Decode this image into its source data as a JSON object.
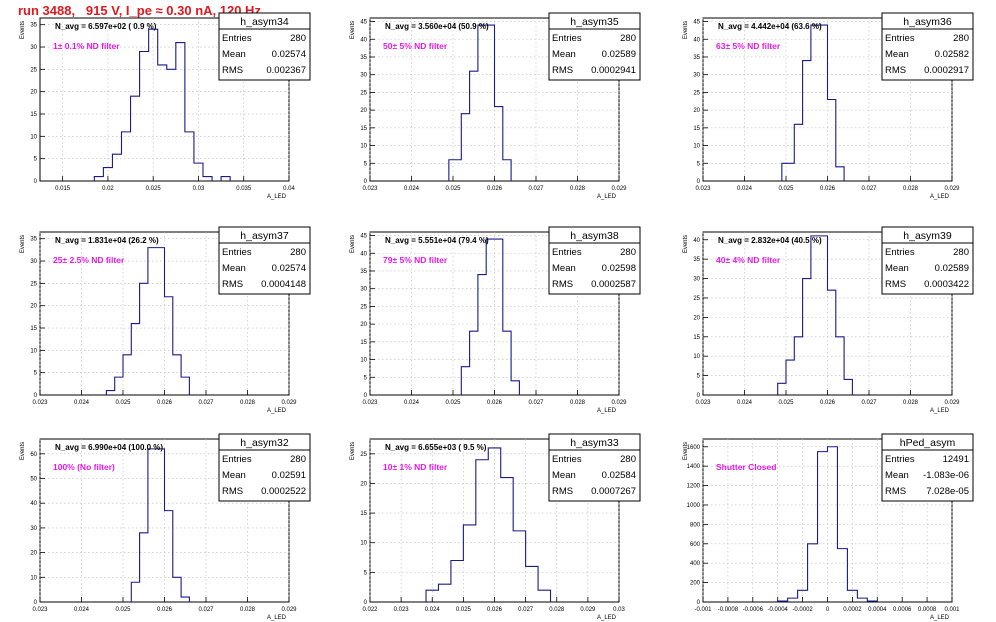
{
  "page_title": "run 3488,   915 V, I_pe ≈ 0.30 nA, 120 Hz",
  "colors": {
    "histogram": "#1a1a8a",
    "annotation": "#e619e6",
    "title": "#e0191e",
    "grid": "#bbbbbb"
  },
  "stat_labels": [
    "Entries",
    "Mean",
    "RMS"
  ],
  "chart_data": [
    {
      "type": "bar",
      "name": "h_asym34",
      "ylabel": "Events",
      "xlabel": "A_LED",
      "navg": "N_avg = 6.597e+02 ( 0.9 %)",
      "note": "1± 0.1% ND filter",
      "entries": "280",
      "mean": "0.02574",
      "rms": "0.002367",
      "xlim": [
        0.0125,
        0.04
      ],
      "ylim": [
        0,
        36.5
      ],
      "xticks": [
        0.015,
        0.02,
        0.025,
        0.03,
        0.035,
        0.04
      ],
      "xticklabels": [
        "0.015",
        "0.02",
        "0.025",
        "0.03",
        "0.035",
        "0.04"
      ],
      "yticks": [
        0,
        5,
        10,
        15,
        20,
        25,
        30,
        35
      ],
      "bin_edges": [
        0.0185,
        0.0195,
        0.0205,
        0.0215,
        0.0225,
        0.0235,
        0.0245,
        0.0255,
        0.0265,
        0.0275,
        0.0285,
        0.0295,
        0.0305,
        0.0315
      ],
      "counts": [
        1,
        3,
        6,
        11,
        19,
        29,
        34,
        26,
        25,
        31,
        11,
        4,
        1
      ],
      "extra_bins": [
        {
          "x0": 0.0325,
          "x1": 0.0335,
          "count": 1
        }
      ]
    },
    {
      "type": "bar",
      "name": "h_asym35",
      "ylabel": "Events",
      "xlabel": "A_LED",
      "navg": "N_avg = 3.560e+04 (50.9 %)",
      "note": "50± 5% ND filter",
      "entries": "280",
      "mean": "0.02589",
      "rms": "0.0002941",
      "xlim": [
        0.023,
        0.029
      ],
      "ylim": [
        0,
        46
      ],
      "xticks": [
        0.023,
        0.024,
        0.025,
        0.026,
        0.027,
        0.028,
        0.029
      ],
      "xticklabels": [
        "0.023",
        "0.024",
        "0.025",
        "0.026",
        "0.027",
        "0.028",
        "0.029"
      ],
      "yticks": [
        0,
        5,
        10,
        15,
        20,
        25,
        30,
        35,
        40,
        45
      ],
      "bin_edges": [
        0.0249,
        0.0252,
        0.0254,
        0.0256,
        0.0258,
        0.026,
        0.0262,
        0.0264
      ],
      "counts": [
        6,
        19,
        31,
        44,
        44,
        21,
        6
      ]
    },
    {
      "type": "bar",
      "name": "h_asym36",
      "ylabel": "Events",
      "xlabel": "A_LED",
      "navg": "N_avg = 4.442e+04 (63.6 %)",
      "note": "63± 5% ND filter",
      "entries": "280",
      "mean": "0.02582",
      "rms": "0.0002917",
      "xlim": [
        0.023,
        0.029
      ],
      "ylim": [
        0,
        46
      ],
      "xticks": [
        0.023,
        0.024,
        0.025,
        0.026,
        0.027,
        0.028,
        0.029
      ],
      "xticklabels": [
        "0.023",
        "0.024",
        "0.025",
        "0.026",
        "0.027",
        "0.028",
        "0.029"
      ],
      "yticks": [
        0,
        5,
        10,
        15,
        20,
        25,
        30,
        35,
        40,
        45
      ],
      "bin_edges": [
        0.0249,
        0.0252,
        0.0254,
        0.0256,
        0.0258,
        0.026,
        0.0262,
        0.0264
      ],
      "counts": [
        5,
        16,
        34,
        44,
        44,
        23,
        4
      ]
    },
    {
      "type": "bar",
      "name": "h_asym37",
      "ylabel": "Events",
      "xlabel": "A_LED",
      "navg": "N_avg = 1.831e+04 (26.2 %)",
      "note": "25± 2.5% ND filter",
      "entries": "280",
      "mean": "0.02574",
      "rms": "0.0004148",
      "xlim": [
        0.023,
        0.029
      ],
      "ylim": [
        0,
        36.5
      ],
      "xticks": [
        0.023,
        0.024,
        0.025,
        0.026,
        0.027,
        0.028,
        0.029
      ],
      "xticklabels": [
        "0.023",
        "0.024",
        "0.025",
        "0.026",
        "0.027",
        "0.028",
        "0.029"
      ],
      "yticks": [
        0,
        5,
        10,
        15,
        20,
        25,
        30,
        35
      ],
      "bin_edges": [
        0.0246,
        0.0248,
        0.025,
        0.0252,
        0.0254,
        0.0256,
        0.0258,
        0.026,
        0.0262,
        0.0264,
        0.0266
      ],
      "counts": [
        1,
        4,
        9,
        16,
        25,
        33,
        33,
        22,
        9,
        4
      ]
    },
    {
      "type": "bar",
      "name": "h_asym38",
      "ylabel": "Events",
      "xlabel": "A_LED",
      "navg": "N_avg = 5.551e+04 (79.4 %)",
      "note": "79± 5% ND filter",
      "entries": "280",
      "mean": "0.02598",
      "rms": "0.0002587",
      "xlim": [
        0.023,
        0.029
      ],
      "ylim": [
        0,
        46
      ],
      "xticks": [
        0.023,
        0.024,
        0.025,
        0.026,
        0.027,
        0.028,
        0.029
      ],
      "xticklabels": [
        "0.023",
        "0.024",
        "0.025",
        "0.026",
        "0.027",
        "0.028",
        "0.029"
      ],
      "yticks": [
        0,
        5,
        10,
        15,
        20,
        25,
        30,
        35,
        40,
        45
      ],
      "bin_edges": [
        0.0252,
        0.0254,
        0.0256,
        0.0258,
        0.026,
        0.0262,
        0.0264,
        0.0266
      ],
      "counts": [
        8,
        18,
        34,
        44,
        44,
        18,
        4
      ]
    },
    {
      "type": "bar",
      "name": "h_asym39",
      "ylabel": "Events",
      "xlabel": "A_LED",
      "navg": "N_avg = 2.832e+04 (40.5 %)",
      "note": "40± 4% ND filter",
      "entries": "280",
      "mean": "0.02589",
      "rms": "0.0003422",
      "xlim": [
        0.023,
        0.029
      ],
      "ylim": [
        0,
        42
      ],
      "xticks": [
        0.023,
        0.024,
        0.025,
        0.026,
        0.027,
        0.028,
        0.029
      ],
      "xticklabels": [
        "0.023",
        "0.024",
        "0.025",
        "0.026",
        "0.027",
        "0.028",
        "0.029"
      ],
      "yticks": [
        0,
        5,
        10,
        15,
        20,
        25,
        30,
        35,
        40
      ],
      "bin_edges": [
        0.0248,
        0.025,
        0.0252,
        0.0254,
        0.0256,
        0.0258,
        0.026,
        0.0262,
        0.0264,
        0.0266
      ],
      "counts": [
        3,
        9,
        15,
        30,
        41,
        41,
        27,
        15,
        4
      ]
    },
    {
      "type": "bar",
      "name": "h_asym32",
      "ylabel": "Events",
      "xlabel": "A_LED",
      "navg": "N_avg = 6.990e+04 (100.0 %)",
      "note": "100% (No filter)",
      "entries": "280",
      "mean": "0.02591",
      "rms": "0.0002522",
      "xlim": [
        0.023,
        0.029
      ],
      "ylim": [
        0,
        66
      ],
      "xticks": [
        0.023,
        0.024,
        0.025,
        0.026,
        0.027,
        0.028,
        0.029
      ],
      "xticklabels": [
        "0.023",
        "0.024",
        "0.025",
        "0.026",
        "0.027",
        "0.028",
        "0.029"
      ],
      "yticks": [
        0,
        10,
        20,
        30,
        40,
        50,
        60
      ],
      "bin_edges": [
        0.0252,
        0.0254,
        0.0256,
        0.0258,
        0.026,
        0.0262,
        0.0264,
        0.0266
      ],
      "counts": [
        8,
        28,
        62,
        62,
        37,
        10,
        2
      ]
    },
    {
      "type": "bar",
      "name": "h_asym33",
      "ylabel": "Events",
      "xlabel": "A_LED",
      "navg": "N_avg = 6.655e+03 ( 9.5 %)",
      "note": "10± 1% ND filter",
      "entries": "280",
      "mean": "0.02584",
      "rms": "0.0007267",
      "xlim": [
        0.022,
        0.03
      ],
      "ylim": [
        0,
        27.5
      ],
      "xticks": [
        0.022,
        0.023,
        0.024,
        0.025,
        0.026,
        0.027,
        0.028,
        0.029,
        0.03
      ],
      "xticklabels": [
        "0.022",
        "0.023",
        "0.024",
        "0.025",
        "0.026",
        "0.027",
        "0.028",
        "0.029",
        "0.03"
      ],
      "yticks": [
        0,
        5,
        10,
        15,
        20,
        25
      ],
      "bin_edges": [
        0.0238,
        0.0242,
        0.0246,
        0.025,
        0.0254,
        0.0258,
        0.0262,
        0.0266,
        0.027,
        0.0274,
        0.0278
      ],
      "counts": [
        2,
        3,
        7,
        13,
        24,
        26,
        21,
        12,
        6,
        2
      ]
    },
    {
      "type": "bar",
      "name": "hPed_asym",
      "ylabel": "Events",
      "xlabel": "A_LED",
      "navg": "",
      "note": "Shutter Closed",
      "entries": "12491",
      "mean": "-1.083e-06",
      "rms": "7.028e-05",
      "xlim": [
        -0.001,
        0.001
      ],
      "ylim": [
        0,
        1680
      ],
      "xticks": [
        -0.001,
        -0.0008,
        -0.0006,
        -0.0004,
        -0.0002,
        0,
        0.0002,
        0.0004,
        0.0006,
        0.0008,
        0.001
      ],
      "xticklabels": [
        "-0.001",
        "-0.0008",
        "-0.0006",
        "-0.0004",
        "-0.0002",
        "0",
        "0.0002",
        "0.0004",
        "0.0006",
        "0.0008",
        "0.001"
      ],
      "yticks": [
        0,
        200,
        400,
        600,
        800,
        1000,
        1200,
        1400,
        1600
      ],
      "bin_edges": [
        -0.0004,
        -0.00032,
        -0.00024,
        -0.00016,
        -8e-05,
        0,
        8e-05,
        0.00016,
        0.00024,
        0.00032,
        0.0004
      ],
      "counts": [
        10,
        40,
        120,
        600,
        1550,
        1600,
        550,
        120,
        40,
        10
      ]
    }
  ]
}
